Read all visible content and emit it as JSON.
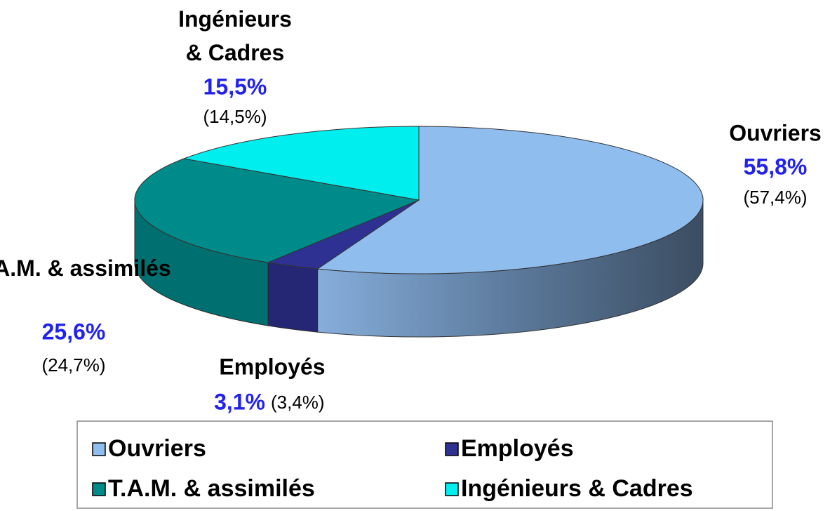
{
  "chart_data": {
    "type": "pie3d",
    "categories": [
      "Ouvriers",
      "Employés",
      "T.A.M. & assimilés",
      "Ingénieurs & Cadres"
    ],
    "values": [
      55.8,
      3.1,
      25.6,
      15.5
    ],
    "value_labels": [
      "55,8%",
      "3,1%",
      "25,6%",
      "15,5%"
    ],
    "previous_values": [
      57.4,
      3.4,
      24.7,
      14.5
    ],
    "previous_value_labels": [
      "(57,4%)",
      "(3,4%)",
      "(24,7%)",
      "(14,5%)"
    ],
    "colors": [
      "#8fbdee",
      "#2e3192",
      "#008b8b",
      "#00eeee"
    ]
  }
}
